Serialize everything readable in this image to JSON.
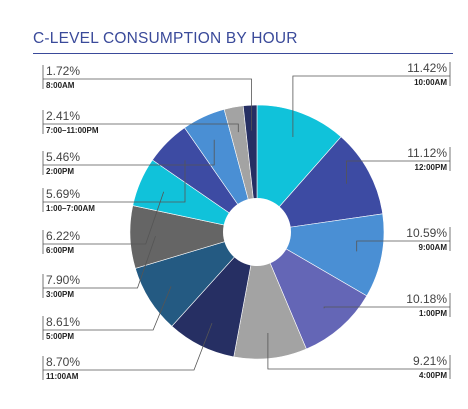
{
  "header": {
    "title": "C-LEVEL CONSUMPTION BY HOUR"
  },
  "chart_data": {
    "type": "pie",
    "title": "C-LEVEL CONSUMPTION BY HOUR",
    "donut": true,
    "slices": [
      {
        "time": "10:00AM",
        "value": 11.42,
        "label": "11.42%",
        "color": "#10c2da"
      },
      {
        "time": "12:00PM",
        "value": 11.12,
        "label": "11.12%",
        "color": "#3d4ba3"
      },
      {
        "time": "9:00AM",
        "value": 10.59,
        "label": "10.59%",
        "color": "#4a8fd4"
      },
      {
        "time": "1:00PM",
        "value": 10.18,
        "label": "10.18%",
        "color": "#6466b6"
      },
      {
        "time": "4:00PM",
        "value": 9.21,
        "label": "9.21%",
        "color": "#a3a3a3"
      },
      {
        "time": "11:00AM",
        "value": 8.7,
        "label": "8.70%",
        "color": "#262f63"
      },
      {
        "time": "5:00PM",
        "value": 8.61,
        "label": "8.61%",
        "color": "#245a82"
      },
      {
        "time": "3:00PM",
        "value": 7.9,
        "label": "7.90%",
        "color": "#656565"
      },
      {
        "time": "6:00PM",
        "value": 6.22,
        "label": "6.22%",
        "color": "#10c2da"
      },
      {
        "time": "1:00–7:00AM",
        "value": 5.69,
        "label": "5.69%",
        "color": "#3d4ba3"
      },
      {
        "time": "2:00PM",
        "value": 5.46,
        "label": "5.46%",
        "color": "#4a8fd4"
      },
      {
        "time": "7:00–11:00PM",
        "value": 2.41,
        "label": "2.41%",
        "color": "#a3a3a3"
      },
      {
        "time": "8:00AM",
        "value": 1.72,
        "label": "1.72%",
        "color": "#262f63"
      }
    ]
  }
}
